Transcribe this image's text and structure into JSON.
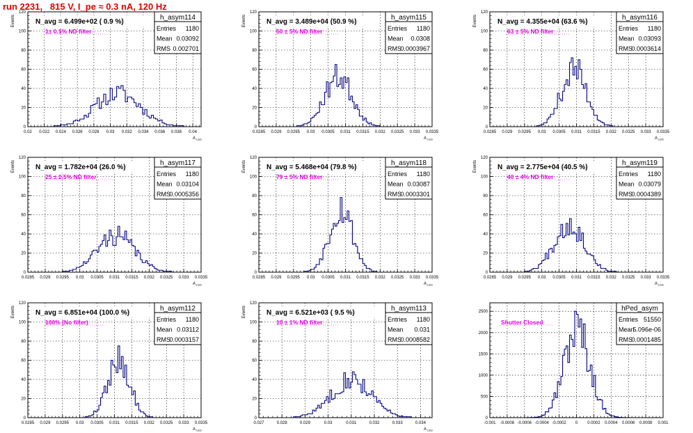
{
  "page": {
    "title": "run 2231,   815 V, I_pe ≈ 0.3 nA, 120 Hz",
    "title_color": "#e00000",
    "filter_label_color": "#e000e0",
    "histogram_color": "#000080"
  },
  "chart_data": [
    {
      "type": "histogram",
      "name": "h_asym114",
      "ylabel": "Events",
      "xlabel": "A_LED",
      "xlim": [
        0.02,
        0.041
      ],
      "ylim": [
        0,
        120
      ],
      "xticks": [
        0.02,
        0.022,
        0.024,
        0.026,
        0.028,
        0.03,
        0.032,
        0.034,
        0.036,
        0.038,
        0.04
      ],
      "xtick_labels": [
        "0.02",
        "0.022",
        "0.024",
        "0.026",
        "0.028",
        "0.03",
        "0.032",
        "0.034",
        "0.036",
        "0.038",
        "0.04"
      ],
      "yticks": [
        0,
        20,
        40,
        60,
        80,
        100,
        120
      ],
      "header": "N_avg = 6.499e+02 ( 0.9 %)",
      "filter_label": "1± 0.1% ND filter",
      "stats": {
        "Entries": "1180",
        "Mean": "0.03092",
        "RMS": "0.002701"
      },
      "gen": {
        "mean": 0.03092,
        "rms": 0.002701,
        "peak": 43,
        "nbins": 80,
        "seed": 11
      }
    },
    {
      "type": "histogram",
      "name": "h_asym115",
      "ylabel": "Events",
      "xlabel": "A_LED",
      "xlim": [
        0.0285,
        0.0335
      ],
      "ylim": [
        0,
        120
      ],
      "xticks": [
        0.0285,
        0.029,
        0.0295,
        0.03,
        0.0305,
        0.031,
        0.0315,
        0.032,
        0.0325,
        0.033,
        0.0335
      ],
      "xtick_labels": [
        "0.0285",
        "0.029",
        "0.0295",
        "0.03",
        "0.0305",
        "0.031",
        "0.0315",
        "0.032",
        "0.0325",
        "0.033",
        "0.0335"
      ],
      "yticks": [
        0,
        20,
        40,
        60,
        80,
        100,
        120
      ],
      "header": "N_avg = 3.489e+04 (50.9 %)",
      "filter_label": "50 ± 5% ND filter",
      "stats": {
        "Entries": "1180",
        "Mean": "0.0308",
        "RMS": "0.0003967"
      },
      "gen": {
        "mean": 0.0308,
        "rms": 0.0003967,
        "peak": 65,
        "nbins": 100,
        "seed": 23
      }
    },
    {
      "type": "histogram",
      "name": "h_asym116",
      "ylabel": "Events",
      "xlabel": "A_LED",
      "xlim": [
        0.0285,
        0.0335
      ],
      "ylim": [
        0,
        120
      ],
      "xticks": [
        0.0285,
        0.029,
        0.0295,
        0.03,
        0.0305,
        0.031,
        0.0315,
        0.032,
        0.0325,
        0.033,
        0.0335
      ],
      "xtick_labels": [
        "0.0285",
        "0.029",
        "0.0295",
        "0.03",
        "0.0305",
        "0.031",
        "0.0315",
        "0.032",
        "0.0325",
        "0.033",
        "0.0335"
      ],
      "yticks": [
        0,
        20,
        40,
        60,
        80,
        100,
        120
      ],
      "header": "N_avg = 4.355e+04 (63.6 %)",
      "filter_label": "63 ± 5% ND filter",
      "stats": {
        "Entries": "1180",
        "Mean": "0.03093",
        "RMS": "0.0003614"
      },
      "gen": {
        "mean": 0.03093,
        "rms": 0.0003614,
        "peak": 72,
        "nbins": 100,
        "seed": 37
      }
    },
    {
      "type": "histogram",
      "name": "h_asym117",
      "ylabel": "Events",
      "xlabel": "A_LED",
      "xlim": [
        0.0285,
        0.0335
      ],
      "ylim": [
        0,
        120
      ],
      "xticks": [
        0.0285,
        0.029,
        0.0295,
        0.03,
        0.0305,
        0.031,
        0.0315,
        0.032,
        0.0325,
        0.033,
        0.0335
      ],
      "xtick_labels": [
        "0.0285",
        "0.029",
        "0.0295",
        "0.03",
        "0.0305",
        "0.031",
        "0.0315",
        "0.032",
        "0.0325",
        "0.033",
        "0.0335"
      ],
      "yticks": [
        0,
        20,
        40,
        60,
        80,
        100,
        120
      ],
      "header": "N_avg = 1.782e+04 (26.0 %)",
      "filter_label": "25 ± 2.5% ND filter",
      "stats": {
        "Entries": "1180",
        "Mean": "0.03104",
        "RMS": "0.0005356"
      },
      "gen": {
        "mean": 0.03104,
        "rms": 0.0005356,
        "peak": 48,
        "nbins": 100,
        "seed": 41
      }
    },
    {
      "type": "histogram",
      "name": "h_asym118",
      "ylabel": "Events",
      "xlabel": "A_LED",
      "xlim": [
        0.0285,
        0.0335
      ],
      "ylim": [
        0,
        120
      ],
      "xticks": [
        0.0285,
        0.029,
        0.0295,
        0.03,
        0.0305,
        0.031,
        0.0315,
        0.032,
        0.0325,
        0.033,
        0.0335
      ],
      "xtick_labels": [
        "0.0285",
        "0.029",
        "0.0295",
        "0.03",
        "0.0305",
        "0.031",
        "0.0315",
        "0.032",
        "0.0325",
        "0.033",
        "0.0335"
      ],
      "yticks": [
        0,
        20,
        40,
        60,
        80,
        100,
        120
      ],
      "header": "N_avg = 5.468e+04 (79.8 %)",
      "filter_label": "79 ± 5% ND filter",
      "stats": {
        "Entries": "1180",
        "Mean": "0.03087",
        "RMS": "0.0003301"
      },
      "gen": {
        "mean": 0.03087,
        "rms": 0.0003301,
        "peak": 78,
        "nbins": 100,
        "seed": 53
      }
    },
    {
      "type": "histogram",
      "name": "h_asym119",
      "ylabel": "Events",
      "xlabel": "A_LED",
      "xlim": [
        0.0285,
        0.0335
      ],
      "ylim": [
        0,
        120
      ],
      "xticks": [
        0.0285,
        0.029,
        0.0295,
        0.03,
        0.0305,
        0.031,
        0.0315,
        0.032,
        0.0325,
        0.033,
        0.0335
      ],
      "xtick_labels": [
        "0.0285",
        "0.029",
        "0.0295",
        "0.03",
        "0.0305",
        "0.031",
        "0.0315",
        "0.032",
        "0.0325",
        "0.033",
        "0.0335"
      ],
      "yticks": [
        0,
        20,
        40,
        60,
        80,
        100,
        120
      ],
      "header": "N_avg = 2.775e+04 (40.5 %)",
      "filter_label": "40 ± 4% ND filter",
      "stats": {
        "Entries": "1180",
        "Mean": "0.03079",
        "RMS": "0.0004389"
      },
      "gen": {
        "mean": 0.03079,
        "rms": 0.0004389,
        "peak": 56,
        "nbins": 100,
        "seed": 67
      }
    },
    {
      "type": "histogram",
      "name": "h_asym112",
      "ylabel": "Events",
      "xlabel": "A_LED",
      "xlim": [
        0.0285,
        0.0335
      ],
      "ylim": [
        0,
        120
      ],
      "xticks": [
        0.0285,
        0.029,
        0.0295,
        0.03,
        0.0305,
        0.031,
        0.0315,
        0.032,
        0.0325,
        0.033,
        0.0335
      ],
      "xtick_labels": [
        "0.0285",
        "0.029",
        "0.0295",
        "0.03",
        "0.0305",
        "0.031",
        "0.0315",
        "0.032",
        "0.0325",
        "0.033",
        "0.0335"
      ],
      "yticks": [
        0,
        20,
        40,
        60,
        80,
        100,
        120
      ],
      "header": "N_avg = 6.851e+04 (100.0 %)",
      "filter_label": "100% (No filter)",
      "stats": {
        "Entries": "1180",
        "Mean": "0.03112",
        "RMS": "0.0003157"
      },
      "gen": {
        "mean": 0.03112,
        "rms": 0.0003157,
        "peak": 75,
        "nbins": 100,
        "seed": 79
      }
    },
    {
      "type": "histogram",
      "name": "h_asym113",
      "ylabel": "Events",
      "xlabel": "A_LED",
      "xlim": [
        0.027,
        0.0345
      ],
      "ylim": [
        0,
        120
      ],
      "xticks": [
        0.027,
        0.028,
        0.029,
        0.03,
        0.031,
        0.032,
        0.033,
        0.034
      ],
      "xtick_labels": [
        "0.027",
        "0.028",
        "0.029",
        "0.03",
        "0.031",
        "0.032",
        "0.033",
        "0.034"
      ],
      "yticks": [
        0,
        20,
        40,
        60,
        80,
        100,
        120
      ],
      "header": "N_avg = 6.521e+03 ( 9.5 %)",
      "filter_label": "10 ± 1% ND filter",
      "stats": {
        "Entries": "1180",
        "Mean": "0.031",
        "RMS": "0.0008582"
      },
      "gen": {
        "mean": 0.031,
        "rms": 0.0008582,
        "peak": 48,
        "nbins": 100,
        "seed": 83
      }
    },
    {
      "type": "histogram",
      "name": "hPed_asym",
      "ylabel": "",
      "xlabel": "",
      "xlim": [
        -0.001,
        0.001
      ],
      "ylim": [
        0,
        2700
      ],
      "xticks": [
        -0.001,
        -0.0008,
        -0.0006,
        -0.0004,
        -0.0002,
        0,
        0.0002,
        0.0004,
        0.0006,
        0.0008,
        0.001
      ],
      "xtick_labels": [
        "-0.001",
        "-0.0008",
        "-0.0006",
        "-0.0004",
        "-0.0002",
        "0",
        "0.0002",
        "0.0004",
        "0.0006",
        "0.0008",
        "0.001"
      ],
      "yticks": [
        0,
        500,
        1000,
        1500,
        2000,
        2500
      ],
      "header": "",
      "filter_label": "Shutter Closed",
      "stats": {
        "Entries": "51550",
        "Mean": "5.096e-06",
        "RMS": "0.0001485"
      },
      "gen": {
        "mean": 5.096e-06,
        "rms": 0.0001485,
        "peak": 2500,
        "nbins": 100,
        "seed": 97
      }
    }
  ]
}
